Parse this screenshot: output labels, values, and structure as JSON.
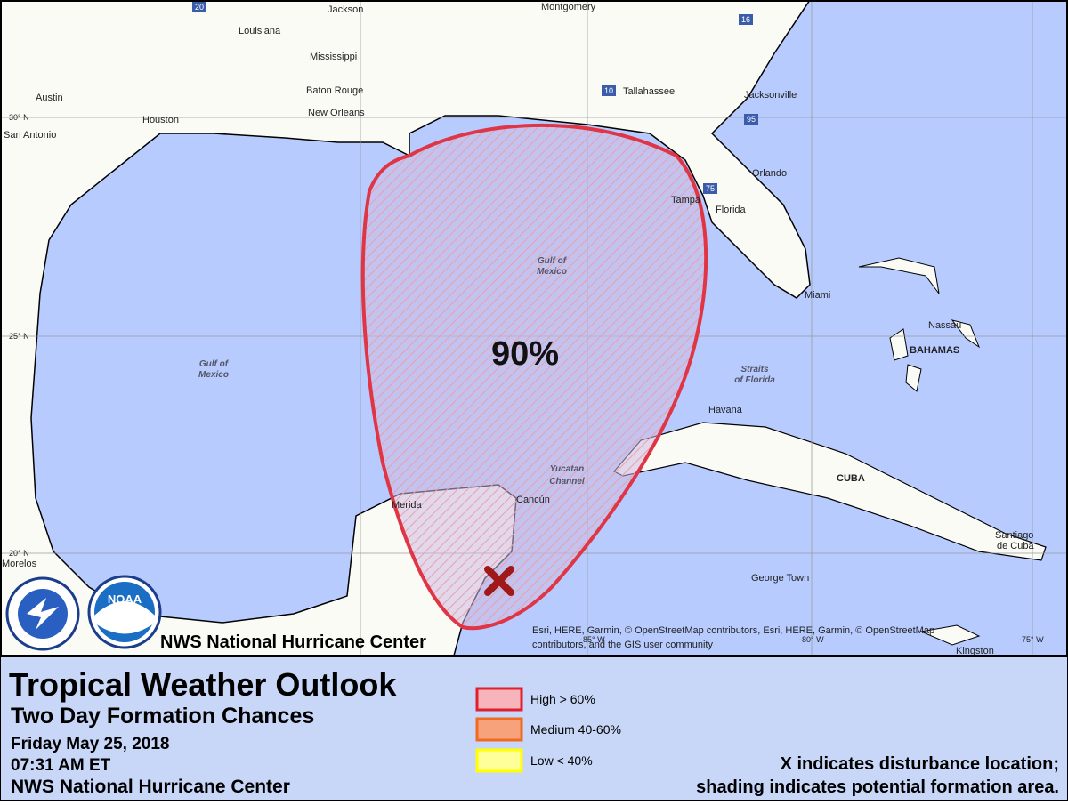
{
  "map": {
    "places": [
      "Jackson",
      "Montgomery",
      "Louisiana",
      "Mississippi",
      "Austin",
      "Houston",
      "San Antonio",
      "Baton Rouge",
      "New Orleans",
      "Tallahassee",
      "Jacksonville",
      "Orlando",
      "Tampa",
      "Florida",
      "Miami",
      "Nassau",
      "BAHAMAS",
      "Havana",
      "CUBA",
      "Cancún",
      "Merida",
      "George Town",
      "Santiago",
      "de Cuba",
      "Kingston",
      "Morelos"
    ],
    "water": [
      "Gulf of",
      "Mexico",
      "Gulf of",
      "Mexico",
      "Straits",
      "of Florida",
      "Yucatan",
      "Channel"
    ],
    "highways": [
      "20",
      "16",
      "10",
      "95",
      "75"
    ],
    "graticule": [
      "30° N",
      "25° N",
      "20° N",
      "-85° W",
      "-80° W",
      "-75° W"
    ],
    "probability": "90%",
    "banner": "NWS National Hurricane Center",
    "logo": "NOAA",
    "attribution": [
      "Esri, HERE, Garmin, © OpenStreetMap contributors, Esri, HERE, Garmin, © OpenStreetMap",
      "contributors, and the GIS user community"
    ]
  },
  "footer": {
    "title": "Tropical Weather Outlook",
    "subtitle": "Two Day Formation Chances",
    "date": "Friday May 25, 2018",
    "time": "07:31 AM ET",
    "center": "NWS National Hurricane Center",
    "legend": [
      "High > 60%",
      "Medium 40-60%",
      "Low < 40%"
    ],
    "notes": [
      "X indicates disturbance location;",
      "shading indicates potential formation area."
    ]
  }
}
